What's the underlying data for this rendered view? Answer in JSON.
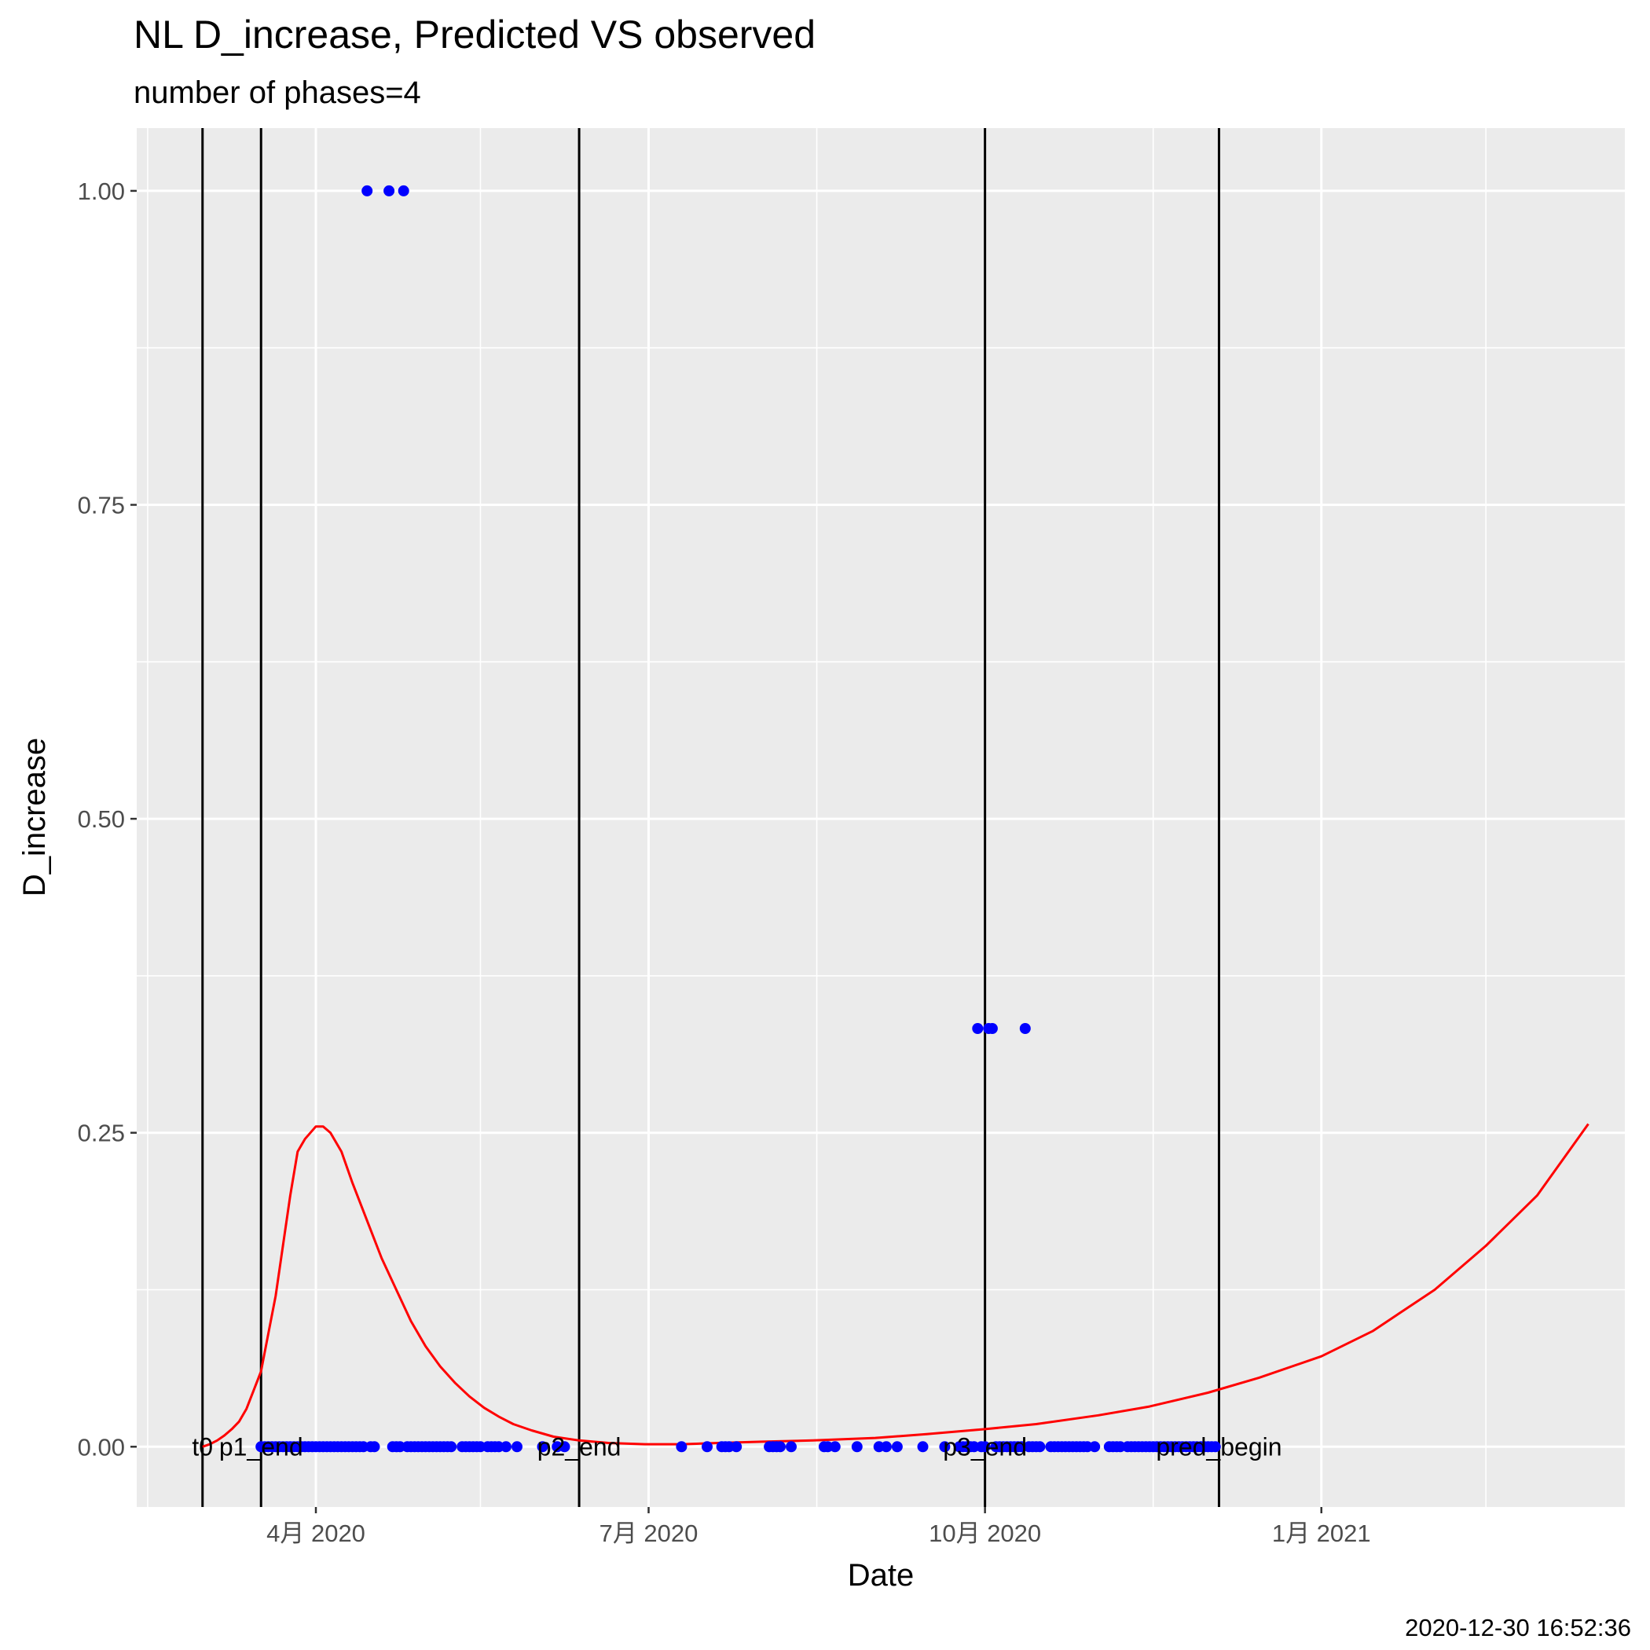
{
  "chart_data": {
    "type": "scatter",
    "title": "NL D_increase, Predicted VS observed",
    "subtitle": "number of phases=4",
    "xlabel": "Date",
    "ylabel": "D_increase",
    "caption": "2020-12-30 16:52:36",
    "xlim": [
      "2020-02-12",
      "2021-03-25"
    ],
    "ylim": [
      -0.048,
      1.05
    ],
    "grid": true,
    "x_ticks": [
      {
        "date": "2020-04-01",
        "label": "4月 2020"
      },
      {
        "date": "2020-07-01",
        "label": "7月 2020"
      },
      {
        "date": "2020-10-01",
        "label": "10月 2020"
      },
      {
        "date": "2021-01-01",
        "label": "1月 2021"
      }
    ],
    "x_minor_ticks": [
      "2020-02-15",
      "2020-05-16",
      "2020-08-16",
      "2020-11-16",
      "2021-02-15"
    ],
    "y_ticks": [
      0,
      0.25,
      0.5,
      0.75,
      1.0
    ],
    "y_tick_labels": [
      "0.00",
      "0.25",
      "0.50",
      "0.75",
      "1.00"
    ],
    "y_minor_ticks": [
      0.125,
      0.375,
      0.625,
      0.875
    ],
    "phase_lines": [
      {
        "date": "2020-03-01",
        "label": "t0"
      },
      {
        "date": "2020-03-17",
        "label": "p1_end"
      },
      {
        "date": "2020-06-12",
        "label": "p2_end"
      },
      {
        "date": "2020-10-01",
        "label": "p3_end"
      },
      {
        "date": "2020-12-04",
        "label": "pred_begin"
      }
    ],
    "series": [
      {
        "role": "observed",
        "color": "#0000ff",
        "points": [
          [
            "2020-03-17",
            0
          ],
          [
            "2020-03-18",
            0
          ],
          [
            "2020-03-19",
            0
          ],
          [
            "2020-03-20",
            0
          ],
          [
            "2020-03-21",
            0
          ],
          [
            "2020-03-22",
            0
          ],
          [
            "2020-03-23",
            0
          ],
          [
            "2020-03-24",
            0
          ],
          [
            "2020-03-25",
            0
          ],
          [
            "2020-03-26",
            0
          ],
          [
            "2020-03-27",
            0
          ],
          [
            "2020-03-28",
            0
          ],
          [
            "2020-03-29",
            0
          ],
          [
            "2020-03-30",
            0
          ],
          [
            "2020-03-31",
            0
          ],
          [
            "2020-04-01",
            0
          ],
          [
            "2020-04-02",
            0
          ],
          [
            "2020-04-03",
            0
          ],
          [
            "2020-04-04",
            0
          ],
          [
            "2020-04-05",
            0
          ],
          [
            "2020-04-06",
            0
          ],
          [
            "2020-04-07",
            0
          ],
          [
            "2020-04-08",
            0
          ],
          [
            "2020-04-09",
            0
          ],
          [
            "2020-04-10",
            0
          ],
          [
            "2020-04-11",
            0
          ],
          [
            "2020-04-12",
            0
          ],
          [
            "2020-04-13",
            0
          ],
          [
            "2020-04-14",
            0
          ],
          [
            "2020-04-15",
            1
          ],
          [
            "2020-04-16",
            0
          ],
          [
            "2020-04-17",
            0
          ],
          [
            "2020-04-21",
            1
          ],
          [
            "2020-04-22",
            0
          ],
          [
            "2020-04-23",
            0
          ],
          [
            "2020-04-24",
            0
          ],
          [
            "2020-04-25",
            1
          ],
          [
            "2020-04-26",
            0
          ],
          [
            "2020-04-27",
            0
          ],
          [
            "2020-04-28",
            0
          ],
          [
            "2020-04-29",
            0
          ],
          [
            "2020-04-30",
            0
          ],
          [
            "2020-05-01",
            0
          ],
          [
            "2020-05-02",
            0
          ],
          [
            "2020-05-03",
            0
          ],
          [
            "2020-05-04",
            0
          ],
          [
            "2020-05-05",
            0
          ],
          [
            "2020-05-06",
            0
          ],
          [
            "2020-05-07",
            0
          ],
          [
            "2020-05-08",
            0
          ],
          [
            "2020-05-11",
            0
          ],
          [
            "2020-05-12",
            0
          ],
          [
            "2020-05-13",
            0
          ],
          [
            "2020-05-14",
            0
          ],
          [
            "2020-05-15",
            0
          ],
          [
            "2020-05-16",
            0
          ],
          [
            "2020-05-18",
            0
          ],
          [
            "2020-05-19",
            0
          ],
          [
            "2020-05-20",
            0
          ],
          [
            "2020-05-21",
            0
          ],
          [
            "2020-05-23",
            0
          ],
          [
            "2020-05-26",
            0
          ],
          [
            "2020-06-02",
            0
          ],
          [
            "2020-06-06",
            0
          ],
          [
            "2020-06-08",
            0
          ],
          [
            "2020-07-10",
            0
          ],
          [
            "2020-07-17",
            0
          ],
          [
            "2020-07-21",
            0
          ],
          [
            "2020-07-22",
            0
          ],
          [
            "2020-07-23",
            0
          ],
          [
            "2020-07-25",
            0
          ],
          [
            "2020-08-03",
            0
          ],
          [
            "2020-08-04",
            0
          ],
          [
            "2020-08-05",
            0
          ],
          [
            "2020-08-06",
            0
          ],
          [
            "2020-08-09",
            0
          ],
          [
            "2020-08-18",
            0
          ],
          [
            "2020-08-19",
            0
          ],
          [
            "2020-08-21",
            0
          ],
          [
            "2020-08-27",
            0
          ],
          [
            "2020-09-02",
            0
          ],
          [
            "2020-09-04",
            0
          ],
          [
            "2020-09-07",
            0
          ],
          [
            "2020-09-14",
            0
          ],
          [
            "2020-09-20",
            0
          ],
          [
            "2020-09-24",
            0
          ],
          [
            "2020-09-25",
            0
          ],
          [
            "2020-09-26",
            0
          ],
          [
            "2020-09-27",
            0
          ],
          [
            "2020-09-28",
            0
          ],
          [
            "2020-09-29",
            0.333
          ],
          [
            "2020-09-30",
            0
          ],
          [
            "2020-10-01",
            0
          ],
          [
            "2020-10-02",
            0.333
          ],
          [
            "2020-10-03",
            0.333
          ],
          [
            "2020-10-04",
            0
          ],
          [
            "2020-10-05",
            0
          ],
          [
            "2020-10-06",
            0
          ],
          [
            "2020-10-07",
            0
          ],
          [
            "2020-10-08",
            0
          ],
          [
            "2020-10-09",
            0
          ],
          [
            "2020-10-10",
            0
          ],
          [
            "2020-10-11",
            0
          ],
          [
            "2020-10-12",
            0.333
          ],
          [
            "2020-10-13",
            0
          ],
          [
            "2020-10-14",
            0
          ],
          [
            "2020-10-15",
            0
          ],
          [
            "2020-10-16",
            0
          ],
          [
            "2020-10-19",
            0
          ],
          [
            "2020-10-20",
            0
          ],
          [
            "2020-10-21",
            0
          ],
          [
            "2020-10-22",
            0
          ],
          [
            "2020-10-23",
            0
          ],
          [
            "2020-10-24",
            0
          ],
          [
            "2020-10-25",
            0
          ],
          [
            "2020-10-26",
            0
          ],
          [
            "2020-10-27",
            0
          ],
          [
            "2020-10-28",
            0
          ],
          [
            "2020-10-29",
            0
          ],
          [
            "2020-10-31",
            0
          ],
          [
            "2020-11-04",
            0
          ],
          [
            "2020-11-05",
            0
          ],
          [
            "2020-11-06",
            0
          ],
          [
            "2020-11-07",
            0
          ],
          [
            "2020-11-09",
            0
          ],
          [
            "2020-11-10",
            0
          ],
          [
            "2020-11-11",
            0
          ],
          [
            "2020-11-12",
            0
          ],
          [
            "2020-11-13",
            0
          ],
          [
            "2020-11-14",
            0
          ],
          [
            "2020-11-15",
            0
          ],
          [
            "2020-11-16",
            0
          ],
          [
            "2020-11-17",
            0
          ],
          [
            "2020-11-18",
            0
          ],
          [
            "2020-11-19",
            0
          ],
          [
            "2020-11-20",
            0
          ],
          [
            "2020-11-21",
            0
          ],
          [
            "2020-11-22",
            0
          ],
          [
            "2020-11-23",
            0
          ],
          [
            "2020-11-24",
            0
          ],
          [
            "2020-11-25",
            0
          ],
          [
            "2020-11-26",
            0
          ],
          [
            "2020-11-27",
            0
          ],
          [
            "2020-11-28",
            0
          ],
          [
            "2020-11-29",
            0
          ],
          [
            "2020-11-30",
            0
          ],
          [
            "2020-12-01",
            0
          ],
          [
            "2020-12-02",
            0
          ],
          [
            "2020-12-03",
            0
          ]
        ]
      },
      {
        "role": "predicted",
        "color": "#ff0000",
        "points": [
          [
            "2020-03-01",
            0
          ],
          [
            "2020-03-03",
            0.002
          ],
          [
            "2020-03-05",
            0.005
          ],
          [
            "2020-03-07",
            0.009
          ],
          [
            "2020-03-09",
            0.014
          ],
          [
            "2020-03-11",
            0.02
          ],
          [
            "2020-03-13",
            0.03
          ],
          [
            "2020-03-15",
            0.045
          ],
          [
            "2020-03-17",
            0.06
          ],
          [
            "2020-03-19",
            0.09
          ],
          [
            "2020-03-21",
            0.12
          ],
          [
            "2020-03-23",
            0.16
          ],
          [
            "2020-03-25",
            0.2
          ],
          [
            "2020-03-27",
            0.235
          ],
          [
            "2020-03-29",
            0.245
          ],
          [
            "2020-04-01",
            0.255
          ],
          [
            "2020-04-03",
            0.255
          ],
          [
            "2020-04-05",
            0.25
          ],
          [
            "2020-04-08",
            0.235
          ],
          [
            "2020-04-11",
            0.21
          ],
          [
            "2020-04-15",
            0.18
          ],
          [
            "2020-04-19",
            0.15
          ],
          [
            "2020-04-23",
            0.125
          ],
          [
            "2020-04-27",
            0.1
          ],
          [
            "2020-05-01",
            0.08
          ],
          [
            "2020-05-05",
            0.064
          ],
          [
            "2020-05-09",
            0.051
          ],
          [
            "2020-05-13",
            0.04
          ],
          [
            "2020-05-17",
            0.031
          ],
          [
            "2020-05-21",
            0.024
          ],
          [
            "2020-05-25",
            0.018
          ],
          [
            "2020-05-30",
            0.013
          ],
          [
            "2020-06-05",
            0.008
          ],
          [
            "2020-06-12",
            0.005
          ],
          [
            "2020-06-20",
            0.003
          ],
          [
            "2020-06-30",
            0.002
          ],
          [
            "2020-07-10",
            0.002
          ],
          [
            "2020-07-20",
            0.003
          ],
          [
            "2020-08-01",
            0.004
          ],
          [
            "2020-08-15",
            0.005
          ],
          [
            "2020-09-01",
            0.007
          ],
          [
            "2020-09-15",
            0.01
          ],
          [
            "2020-10-01",
            0.014
          ],
          [
            "2020-10-15",
            0.018
          ],
          [
            "2020-11-01",
            0.025
          ],
          [
            "2020-11-15",
            0.032
          ],
          [
            "2020-12-01",
            0.043
          ],
          [
            "2020-12-15",
            0.055
          ],
          [
            "2021-01-01",
            0.072
          ],
          [
            "2021-01-15",
            0.092
          ],
          [
            "2021-02-01",
            0.125
          ],
          [
            "2021-02-15",
            0.16
          ],
          [
            "2021-03-01",
            0.2
          ],
          [
            "2021-03-15",
            0.257
          ]
        ]
      }
    ]
  }
}
